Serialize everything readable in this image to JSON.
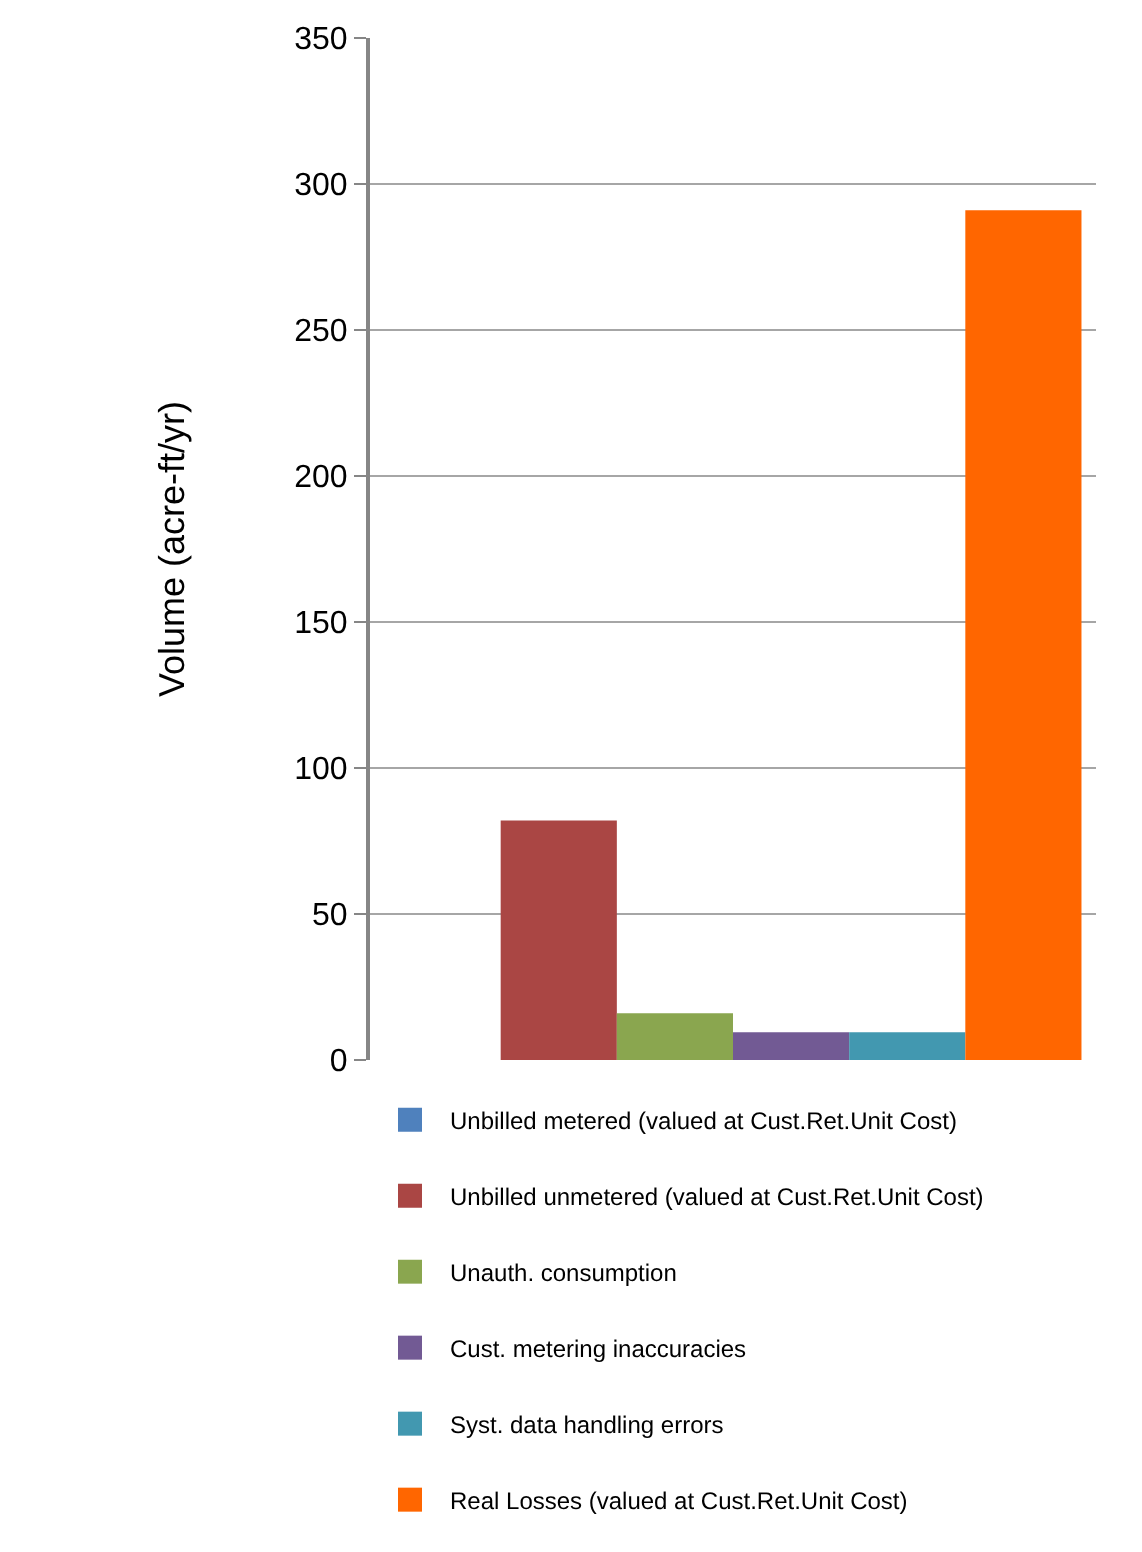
{
  "chart_data": {
    "type": "bar",
    "ylabel": "Volume (acre-ft/yr)",
    "categories": [
      null
    ],
    "series": [
      {
        "name": "Unbilled metered (valued at Cust.Ret.Unit Cost)",
        "color": "#4f81bd",
        "values": [
          0
        ]
      },
      {
        "name": "Unbilled unmetered (valued at Cust.Ret.Unit Cost)",
        "color": "#aa4644",
        "values": [
          82
        ]
      },
      {
        "name": "Unauth. consumption",
        "color": "#8aa64f",
        "values": [
          16
        ]
      },
      {
        "name": "Cust. metering inaccuracies",
        "color": "#725a94",
        "values": [
          9.5
        ]
      },
      {
        "name": "Syst. data handling errors",
        "color": "#4298b0",
        "values": [
          9.5
        ]
      },
      {
        "name": "Real Losses (valued at Cust.Ret.Unit Cost)",
        "color": "#ff6600",
        "values": [
          291
        ]
      }
    ],
    "ylim": [
      0,
      350
    ],
    "yticks": [
      0,
      50,
      100,
      150,
      200,
      250,
      300,
      350
    ],
    "grid": "y",
    "legend": "bottom"
  }
}
